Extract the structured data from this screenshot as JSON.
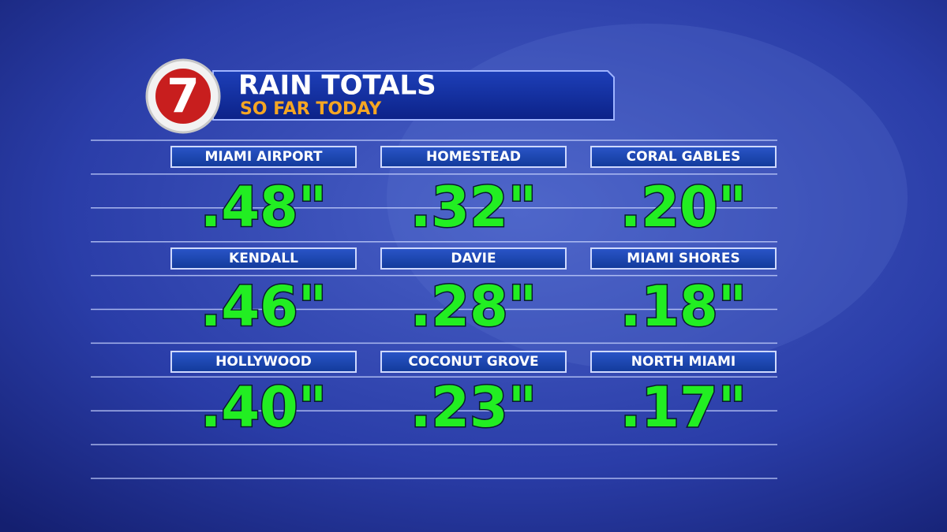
{
  "header": {
    "logo": "7",
    "title": "RAIN TOTALS",
    "subtitle": "SO FAR TODAY"
  },
  "locations": [
    {
      "name": "MIAMI AIRPORT",
      "value": ".48\""
    },
    {
      "name": "HOMESTEAD",
      "value": ".32\""
    },
    {
      "name": "CORAL GABLES",
      "value": ".20\""
    },
    {
      "name": "KENDALL",
      "value": ".46\""
    },
    {
      "name": "DAVIE",
      "value": ".28\""
    },
    {
      "name": "MIAMI SHORES",
      "value": ".18\""
    },
    {
      "name": "HOLLYWOOD",
      "value": ".40\""
    },
    {
      "name": "COCONUT GROVE",
      "value": ".23\""
    },
    {
      "name": "NORTH MIAMI",
      "value": ".17\""
    }
  ]
}
